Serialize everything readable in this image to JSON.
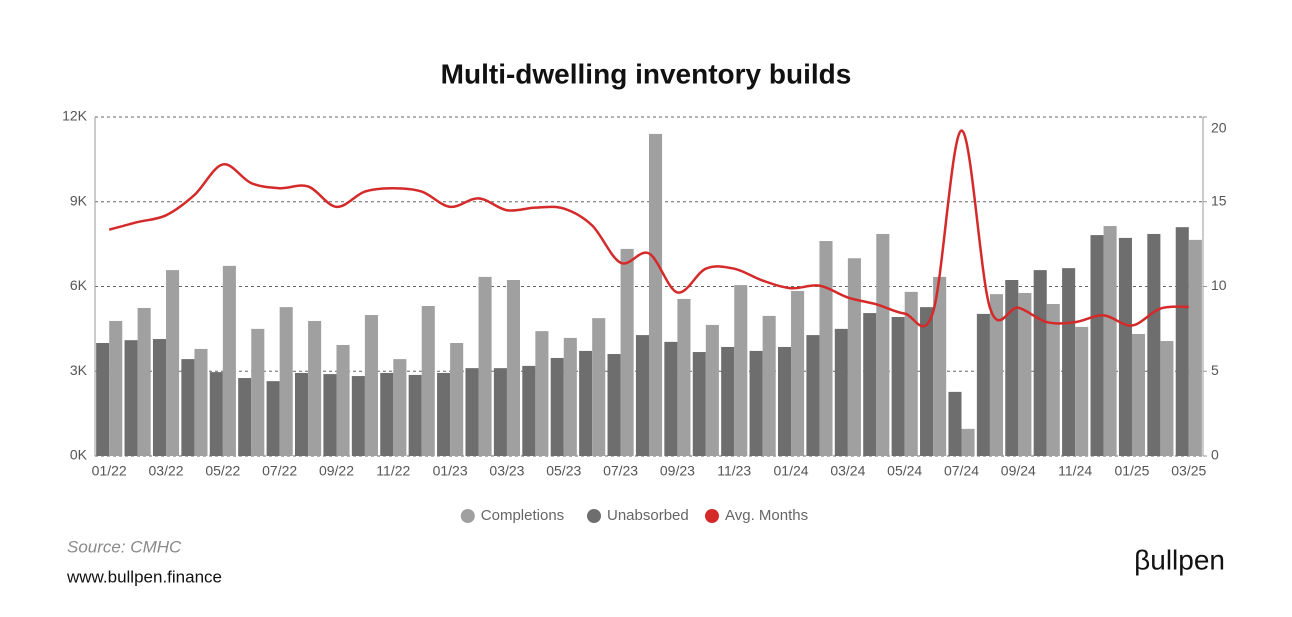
{
  "chart_data": {
    "type": "bar_line",
    "title": "Multi-dwelling inventory builds",
    "categories": [
      "01/22",
      null,
      "03/22",
      null,
      "05/22",
      null,
      "07/22",
      null,
      "09/22",
      null,
      "11/22",
      null,
      "01/23",
      null,
      "03/23",
      null,
      "05/23",
      null,
      "07/23",
      null,
      "09/23",
      null,
      "11/23",
      null,
      "01/24",
      null,
      "03/24",
      null,
      "05/24",
      null,
      "07/24",
      null,
      "09/24",
      null,
      "11/24",
      null,
      "01/25",
      null,
      "03/25"
    ],
    "series": [
      {
        "name": "Unabsorbed",
        "color": "#6e6e6e",
        "kind": "bar",
        "values": [
          4000,
          4100,
          4140,
          3430,
          2970,
          2760,
          2650,
          2940,
          2900,
          2830,
          2940,
          2870,
          2940,
          3110,
          3110,
          3190,
          3470,
          3720,
          3610,
          4280,
          4040,
          3680,
          3860,
          3720,
          3860,
          4280,
          4500,
          5060,
          4920,
          5270,
          2270,
          5030,
          6230,
          6580,
          6650,
          7820,
          7720,
          7860,
          8100
        ]
      },
      {
        "name": "Completions",
        "color": "#a0a0a0",
        "kind": "bar",
        "values": [
          4780,
          5240,
          6580,
          3790,
          6730,
          4500,
          5270,
          4780,
          3930,
          4990,
          3430,
          5310,
          4000,
          6340,
          6230,
          4420,
          4180,
          4880,
          7330,
          11400,
          5560,
          4640,
          6050,
          4960,
          5840,
          7610,
          7000,
          7860,
          5810,
          6340,
          960,
          5730,
          5770,
          5380,
          4570,
          8140,
          4320,
          4070,
          7650
        ]
      },
      {
        "name": "Avg. Months",
        "color": "#d42a2a",
        "kind": "line",
        "axis": "y2",
        "values": [
          13.35,
          13.8,
          14.2,
          15.4,
          17.2,
          16.1,
          15.8,
          15.9,
          14.7,
          15.6,
          15.8,
          15.6,
          14.7,
          15.2,
          14.5,
          14.65,
          14.6,
          13.6,
          11.4,
          11.95,
          9.65,
          11.05,
          11.05,
          10.35,
          9.9,
          10.05,
          9.35,
          8.95,
          8.4,
          8.5,
          19.2,
          8.75,
          8.75,
          7.9,
          7.9,
          8.3,
          7.7,
          8.7,
          8.8
        ]
      }
    ],
    "legend_order": [
      1,
      0,
      2
    ],
    "ylim": [
      0,
      12000
    ],
    "yticks": [
      {
        "value": 0,
        "label": "0K"
      },
      {
        "value": 3000,
        "label": "3K"
      },
      {
        "value": 6000,
        "label": "6K"
      },
      {
        "value": 9000,
        "label": "9K"
      },
      {
        "value": 12000,
        "label": "12K"
      }
    ],
    "y2lim": [
      0,
      20
    ],
    "y2ticks": [
      0,
      5,
      10,
      15,
      20
    ],
    "grid": true,
    "source": "Source: CMHC",
    "website": "www.bullpen.finance",
    "brand": "βullpen"
  }
}
